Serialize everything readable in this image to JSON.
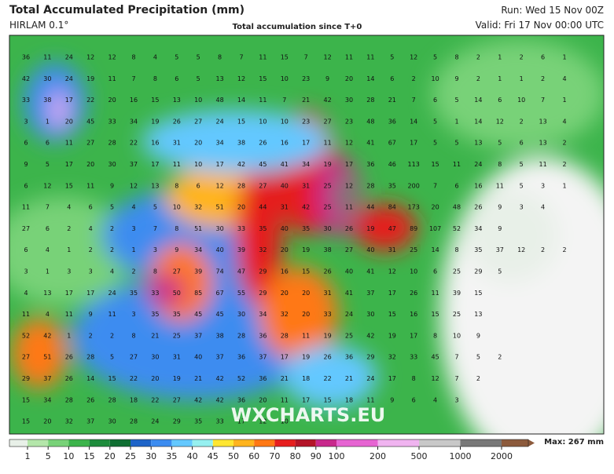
{
  "header": {
    "title": "Total Accumulated Precipitation (mm)",
    "model": "HIRLAM 0.1°",
    "subtitle": "Total accumulation since T+0",
    "run": "Run: Wed 15 Nov 00Z",
    "valid": "Valid: Fri 17 Nov 00:00 UTC"
  },
  "watermark": "WXCHARTS.EU",
  "grid": {
    "rows": [
      [
        36,
        11,
        24,
        12,
        12,
        8,
        4,
        5,
        5,
        8,
        7,
        11,
        15,
        7,
        12,
        11,
        11,
        5,
        12,
        5,
        8,
        2,
        1,
        2,
        6,
        1
      ],
      [
        42,
        30,
        24,
        19,
        11,
        7,
        8,
        6,
        5,
        13,
        12,
        15,
        10,
        23,
        9,
        20,
        14,
        6,
        2,
        10,
        9,
        2,
        1,
        1,
        2,
        4
      ],
      [
        33,
        38,
        17,
        22,
        20,
        16,
        15,
        13,
        10,
        48,
        14,
        11,
        7,
        21,
        42,
        30,
        28,
        21,
        7,
        6,
        5,
        14,
        6,
        10,
        7,
        1
      ],
      [
        3,
        1,
        20,
        45,
        33,
        34,
        19,
        26,
        27,
        24,
        15,
        10,
        10,
        23,
        27,
        23,
        48,
        36,
        14,
        5,
        1,
        14,
        12,
        2,
        13,
        4
      ],
      [
        6,
        6,
        11,
        27,
        28,
        22,
        16,
        31,
        20,
        34,
        38,
        26,
        16,
        17,
        11,
        12,
        41,
        67,
        17,
        5,
        5,
        13,
        5,
        6,
        13,
        2
      ],
      [
        9,
        5,
        17,
        20,
        30,
        37,
        17,
        11,
        10,
        17,
        42,
        45,
        41,
        34,
        19,
        17,
        36,
        46,
        113,
        15,
        11,
        24,
        8,
        5,
        11,
        2
      ],
      [
        6,
        12,
        15,
        11,
        9,
        12,
        13,
        8,
        6,
        12,
        28,
        27,
        40,
        31,
        25,
        12,
        28,
        35,
        200,
        7,
        6,
        16,
        11,
        5,
        3,
        1
      ],
      [
        11,
        7,
        4,
        6,
        5,
        4,
        5,
        10,
        32,
        51,
        20,
        44,
        31,
        42,
        25,
        11,
        44,
        84,
        173,
        20,
        48,
        26,
        9,
        3,
        4,
        null
      ],
      [
        27,
        6,
        2,
        4,
        2,
        3,
        7,
        8,
        51,
        30,
        33,
        35,
        40,
        35,
        30,
        26,
        19,
        47,
        89,
        107,
        52,
        34,
        9,
        null,
        null,
        null
      ],
      [
        6,
        4,
        1,
        2,
        2,
        1,
        3,
        9,
        34,
        40,
        39,
        32,
        20,
        19,
        38,
        27,
        40,
        31,
        25,
        14,
        8,
        35,
        37,
        12,
        2,
        2
      ],
      [
        3,
        1,
        3,
        3,
        4,
        2,
        8,
        27,
        39,
        74,
        47,
        29,
        16,
        15,
        26,
        40,
        41,
        12,
        10,
        6,
        25,
        29,
        5,
        null,
        null,
        null
      ],
      [
        4,
        13,
        17,
        17,
        24,
        35,
        33,
        50,
        85,
        67,
        55,
        29,
        20,
        20,
        31,
        41,
        37,
        17,
        26,
        11,
        39,
        15,
        null,
        null,
        null,
        null
      ],
      [
        11,
        4,
        11,
        9,
        11,
        3,
        35,
        35,
        45,
        45,
        30,
        34,
        32,
        20,
        33,
        24,
        30,
        15,
        16,
        15,
        25,
        13,
        null,
        null,
        null,
        null
      ],
      [
        52,
        42,
        1,
        2,
        2,
        8,
        21,
        25,
        37,
        38,
        28,
        36,
        28,
        11,
        19,
        25,
        42,
        19,
        17,
        8,
        10,
        9,
        null,
        null,
        null,
        null
      ],
      [
        27,
        51,
        26,
        28,
        5,
        27,
        30,
        31,
        40,
        37,
        36,
        37,
        17,
        19,
        26,
        36,
        29,
        32,
        33,
        45,
        7,
        5,
        2,
        null,
        null,
        null
      ],
      [
        29,
        37,
        26,
        14,
        15,
        22,
        20,
        19,
        21,
        42,
        52,
        36,
        21,
        18,
        22,
        21,
        24,
        17,
        8,
        12,
        7,
        2,
        null,
        null,
        null,
        null
      ],
      [
        15,
        34,
        28,
        26,
        28,
        18,
        22,
        27,
        42,
        42,
        36,
        20,
        11,
        17,
        15,
        18,
        11,
        9,
        6,
        4,
        3,
        null,
        null,
        null,
        null,
        null
      ],
      [
        15,
        20,
        32,
        37,
        30,
        28,
        24,
        29,
        35,
        33,
        17,
        12,
        10,
        null,
        null,
        null,
        null,
        null,
        null,
        null,
        null,
        null,
        null,
        null,
        null,
        null
      ]
    ]
  },
  "legend": {
    "labels": [
      1,
      5,
      10,
      15,
      20,
      25,
      30,
      35,
      40,
      45,
      50,
      60,
      70,
      80,
      90,
      100,
      200,
      500,
      1000,
      2000
    ],
    "colors": [
      "#e8f0e8",
      "#b4e6aa",
      "#78d278",
      "#3cb44b",
      "#1e8c3c",
      "#0f6e32",
      "#1e64c8",
      "#3c8cf0",
      "#64c8ff",
      "#96f0f0",
      "#ffe632",
      "#ffb41e",
      "#ff7814",
      "#e61e1e",
      "#b41428",
      "#c8288c",
      "#e664d2",
      "#f0b4f0",
      "#c8c8c8",
      "#787878",
      "#8c5a3c"
    ],
    "max": "Max: 267 mm"
  }
}
